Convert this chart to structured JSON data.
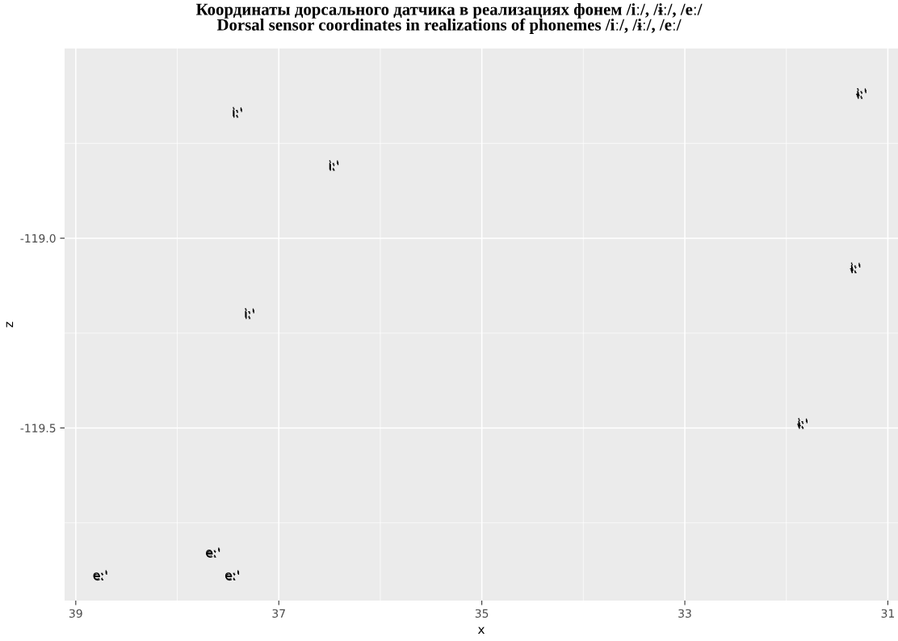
{
  "chart_data": {
    "type": "scatter",
    "title": "Координаты дорсального датчика в реализациях фонем /iː/, /ɨː/, /eː/\nDorsal sensor coordinates in realizations of phonemes /iː/, /ɨː/, /eː/",
    "xlabel": "x",
    "ylabel": "z",
    "series": [
      {
        "name": "iː'",
        "color": "#000000",
        "x": [
          37.41,
          36.46,
          37.29
        ],
        "values": [
          -118.67,
          -118.81,
          -119.2
        ]
      },
      {
        "name": "ɨː'",
        "color": "#000000",
        "x": [
          31.26,
          31.32,
          31.84
        ],
        "values": [
          -118.62,
          -119.08,
          -119.49
        ]
      },
      {
        "name": "eː'",
        "color": "#000000",
        "x": [
          37.65,
          38.76,
          37.46
        ],
        "values": [
          -119.83,
          -119.89,
          -119.89
        ]
      }
    ],
    "marker": "none",
    "xlim": [
      39.11,
      30.9
    ],
    "xticks": [
      39,
      37,
      35,
      33,
      31
    ],
    "ylim": [
      -119.955,
      -118.5
    ],
    "yticks": [
      {
        "value": -119.0,
        "label": "-119.0"
      },
      {
        "value": -119.5,
        "label": "-119.5"
      }
    ],
    "grid": true,
    "legend": false
  }
}
